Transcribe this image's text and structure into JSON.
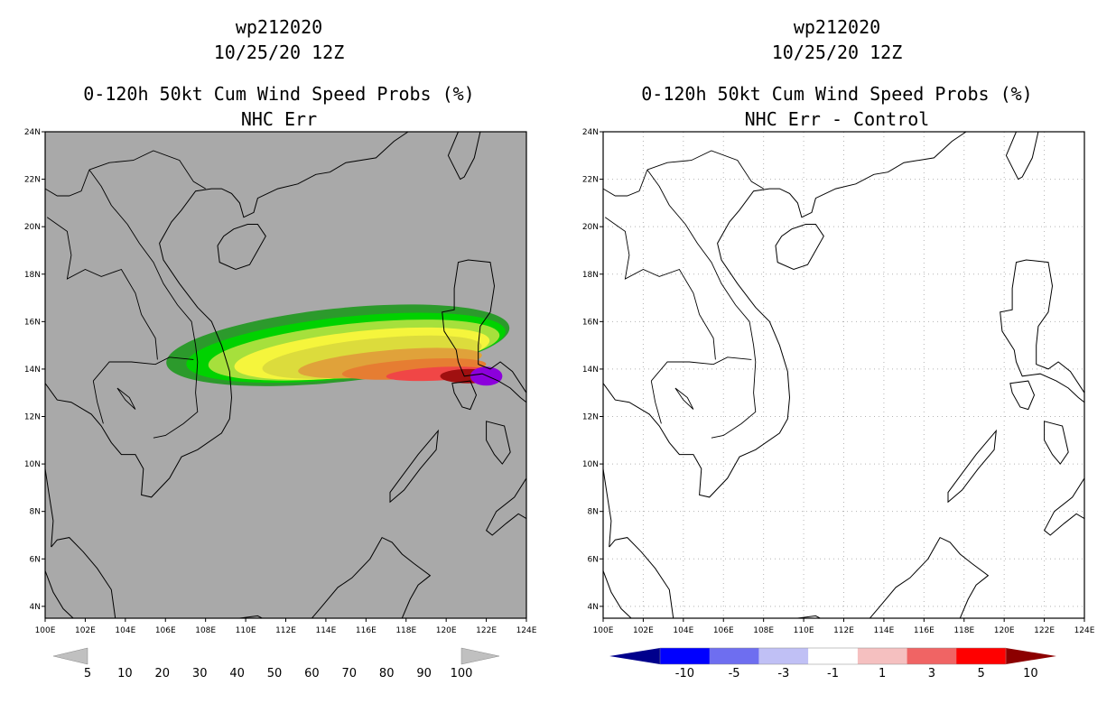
{
  "panels": [
    {
      "id": "left",
      "storm_id": "wp212020",
      "datetime": "10/25/20 12Z",
      "title": "0-120h 50kt Cum Wind Speed Probs (%)",
      "subtitle": "NHC Err",
      "background": "#a9a9a9",
      "gridlines": false
    },
    {
      "id": "right",
      "storm_id": "wp212020",
      "datetime": "10/25/20 12Z",
      "title": "0-120h 50kt Cum Wind Speed Probs (%)",
      "subtitle": "NHC Err - Control",
      "background": "#ffffff",
      "gridlines": true
    }
  ],
  "map": {
    "lon_range": [
      100,
      124
    ],
    "lat_range": [
      3.5,
      24
    ],
    "lon_ticks": [
      "100E",
      "102E",
      "104E",
      "106E",
      "108E",
      "110E",
      "112E",
      "114E",
      "116E",
      "118E",
      "120E",
      "122E",
      "124E"
    ],
    "lat_ticks": [
      "4N",
      "6N",
      "8N",
      "10N",
      "12N",
      "14N",
      "16N",
      "18N",
      "20N",
      "22N",
      "24N"
    ]
  },
  "colorbar_left": {
    "labels": [
      "5",
      "10",
      "20",
      "30",
      "40",
      "50",
      "60",
      "70",
      "80",
      "90",
      "100"
    ],
    "colors": [
      "#2c9a2c",
      "#00d200",
      "#a6e03c",
      "#f5f53c",
      "#dcdc3c",
      "#e0a23a",
      "#e67d32",
      "#f04646",
      "#a01010",
      "#8c00dc"
    ],
    "end_color": "#c0c0c0"
  },
  "colorbar_right": {
    "labels": [
      "-10",
      "-5",
      "-3",
      "-1",
      "1",
      "3",
      "5",
      "10"
    ],
    "colors": [
      "#0000ff",
      "#6e6ef0",
      "#c0c0f5",
      "#ffffff",
      "#f5c0c0",
      "#f06464",
      "#ff0000"
    ],
    "low_color": "#00008c",
    "high_color": "#8c0000"
  },
  "probability_contours": [
    {
      "level": 5,
      "color": "#2c9a2c",
      "center": [
        114.6,
        15.0
      ],
      "hw": 8.6,
      "hh": 1.55,
      "angle": -6
    },
    {
      "level": 10,
      "color": "#00d200",
      "center": [
        115.0,
        14.9
      ],
      "hw": 8.0,
      "hh": 1.3,
      "angle": -6
    },
    {
      "level": 20,
      "color": "#a6e03c",
      "center": [
        115.4,
        14.8
      ],
      "hw": 7.3,
      "hh": 1.12,
      "angle": -6
    },
    {
      "level": 30,
      "color": "#f5f53c",
      "center": [
        115.8,
        14.65
      ],
      "hw": 6.4,
      "hh": 0.95,
      "angle": -6
    },
    {
      "level": 40,
      "color": "#dcdc3c",
      "center": [
        116.3,
        14.5
      ],
      "hw": 5.5,
      "hh": 0.78,
      "angle": -6
    },
    {
      "level": 50,
      "color": "#e0a23a",
      "center": [
        117.2,
        14.25
      ],
      "hw": 4.6,
      "hh": 0.55,
      "angle": -5
    },
    {
      "level": 60,
      "color": "#e67d32",
      "center": [
        118.4,
        14.0
      ],
      "hw": 3.6,
      "hh": 0.4,
      "angle": -4
    },
    {
      "level": 70,
      "color": "#f04646",
      "center": [
        119.6,
        13.8
      ],
      "hw": 2.6,
      "hh": 0.28,
      "angle": -3
    },
    {
      "level": 80,
      "color": "#a01010",
      "center": [
        121.1,
        13.7
      ],
      "hw": 1.4,
      "hh": 0.3,
      "angle": 0
    },
    {
      "level": 90,
      "color": "#8c00dc",
      "center": [
        122.0,
        13.7
      ],
      "hw": 0.8,
      "hh": 0.4,
      "angle": 0
    }
  ]
}
